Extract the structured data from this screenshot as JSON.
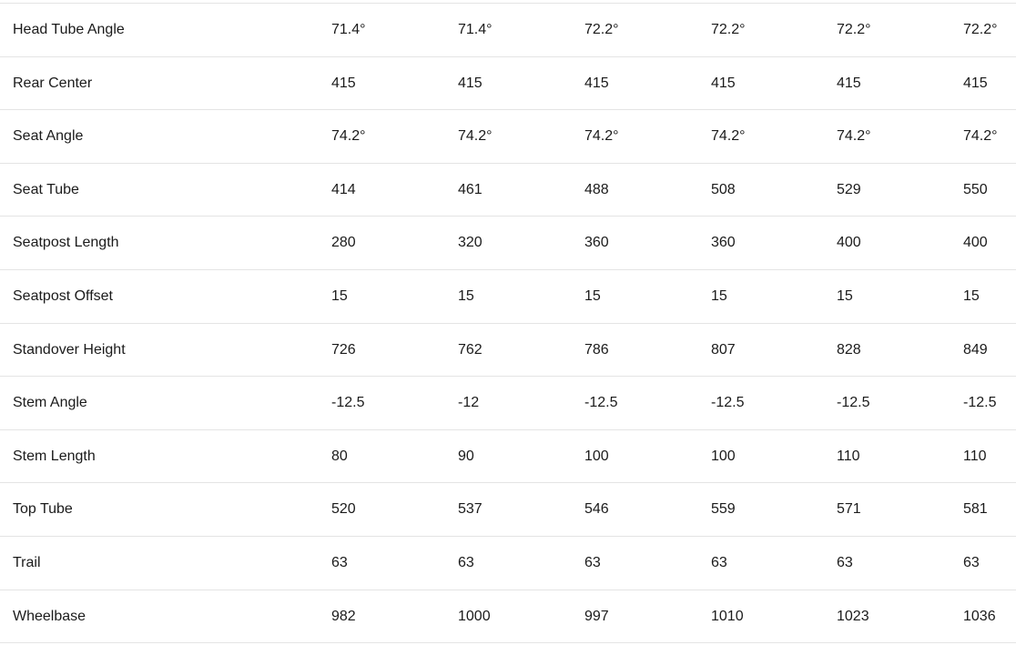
{
  "rows": [
    {
      "label": "Head Tube Angle",
      "values": [
        "71.4°",
        "71.4°",
        "72.2°",
        "72.2°",
        "72.2°",
        "72.2°"
      ]
    },
    {
      "label": "Rear Center",
      "values": [
        "415",
        "415",
        "415",
        "415",
        "415",
        "415"
      ]
    },
    {
      "label": "Seat Angle",
      "values": [
        "74.2°",
        "74.2°",
        "74.2°",
        "74.2°",
        "74.2°",
        "74.2°"
      ]
    },
    {
      "label": "Seat Tube",
      "values": [
        "414",
        "461",
        "488",
        "508",
        "529",
        "550"
      ]
    },
    {
      "label": "Seatpost Length",
      "values": [
        "280",
        "320",
        "360",
        "360",
        "400",
        "400"
      ]
    },
    {
      "label": "Seatpost Offset",
      "values": [
        "15",
        "15",
        "15",
        "15",
        "15",
        "15"
      ]
    },
    {
      "label": "Standover Height",
      "values": [
        "726",
        "762",
        "786",
        "807",
        "828",
        "849"
      ]
    },
    {
      "label": "Stem Angle",
      "values": [
        "-12.5",
        "-12",
        "-12.5",
        "-12.5",
        "-12.5",
        "-12.5"
      ]
    },
    {
      "label": "Stem Length",
      "values": [
        "80",
        "90",
        "100",
        "100",
        "110",
        "110"
      ]
    },
    {
      "label": "Top Tube",
      "values": [
        "520",
        "537",
        "546",
        "559",
        "571",
        "581"
      ]
    },
    {
      "label": "Trail",
      "values": [
        "63",
        "63",
        "63",
        "63",
        "63",
        "63"
      ]
    },
    {
      "label": "Wheelbase",
      "values": [
        "982",
        "1000",
        "997",
        "1010",
        "1023",
        "1036"
      ]
    }
  ]
}
